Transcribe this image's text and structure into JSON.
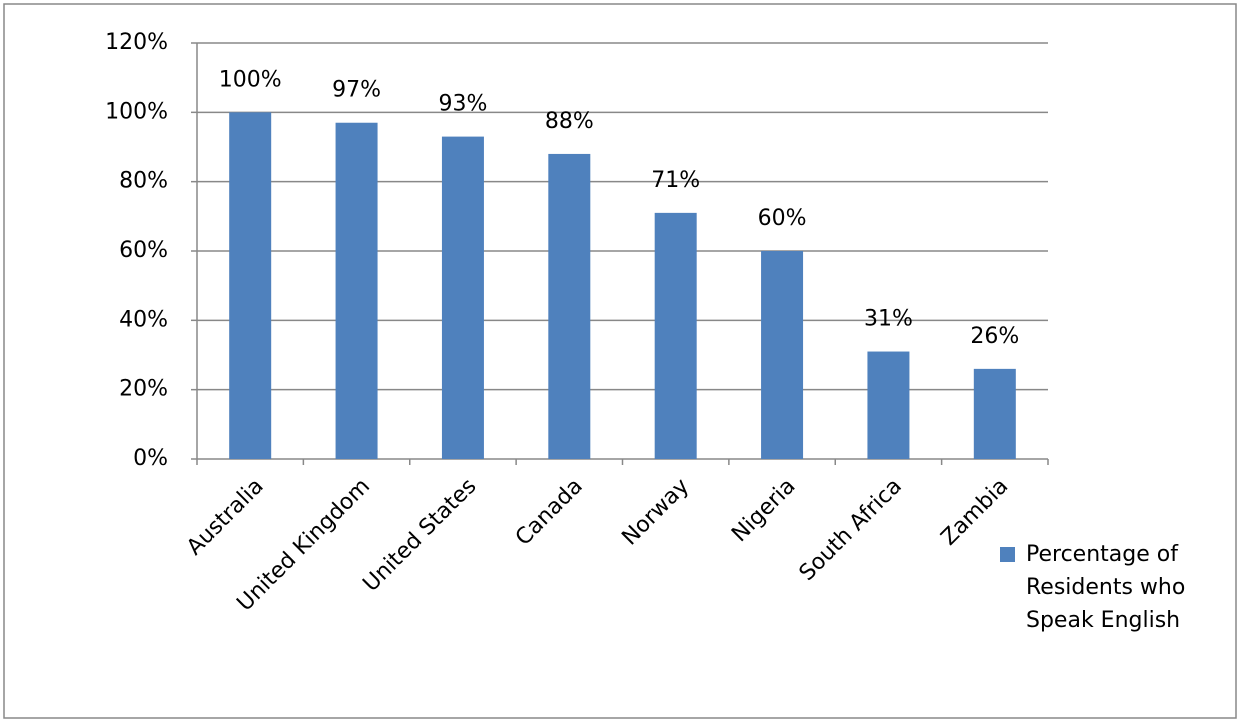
{
  "chart_data": {
    "type": "bar",
    "categories": [
      "Australia",
      "United Kingdom",
      "United States",
      "Canada",
      "Norway",
      "Nigeria",
      "South Africa",
      "Zambia"
    ],
    "series": [
      {
        "name": "Percentage of Residents who Speak English",
        "color": "#4f81bd",
        "values": [
          100,
          97,
          93,
          88,
          71,
          60,
          31,
          26
        ],
        "value_labels": [
          "100%",
          "97%",
          "93%",
          "88%",
          "71%",
          "60%",
          "31%",
          "26%"
        ]
      }
    ],
    "ylim": [
      0,
      120
    ],
    "yticks": [
      {
        "value": 0,
        "label": "0%"
      },
      {
        "value": 20,
        "label": "20%"
      },
      {
        "value": 40,
        "label": "40%"
      },
      {
        "value": 60,
        "label": "60%"
      },
      {
        "value": 80,
        "label": "80%"
      },
      {
        "value": 100,
        "label": "100%"
      },
      {
        "value": 120,
        "label": "120%"
      }
    ],
    "grid": true,
    "legend": "right"
  }
}
